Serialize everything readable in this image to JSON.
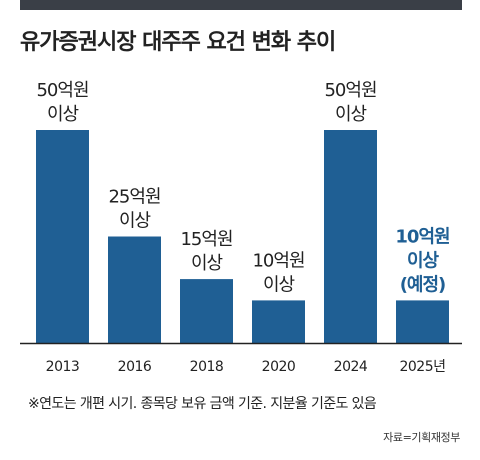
{
  "title": "유가증권시장 대주주 요건 변화 추이",
  "note": "※연도는 개편 시기. 종목당 보유 금액 기준. 지분율 기준도 있음",
  "source": "자료=기획재정부",
  "colors": {
    "bar": "#1f5f94",
    "highlight_text": "#1f5f94",
    "text": "#222222",
    "top_rule": "#3a3f47",
    "axis": "#222222"
  },
  "chart_data": {
    "type": "bar",
    "title": "유가증권시장 대주주 요건 변화 추이",
    "categories": [
      "2013",
      "2016",
      "2018",
      "2020",
      "2024",
      "2025년"
    ],
    "series": [
      {
        "values": [
          50,
          25,
          15,
          10,
          50,
          10
        ]
      }
    ],
    "value_labels": [
      {
        "amount": "50억원",
        "condition": "이상"
      },
      {
        "amount": "25억원",
        "condition": "이상"
      },
      {
        "amount": "15억원",
        "condition": "이상"
      },
      {
        "amount": "10억원",
        "condition": "이상"
      },
      {
        "amount": "50억원",
        "condition": "이상"
      },
      {
        "amount": "10억원",
        "condition": "이상",
        "extra": "(예정)",
        "highlight": true
      }
    ],
    "xlabel": "",
    "ylabel": "",
    "ylim": [
      0,
      50
    ],
    "grid": false,
    "legend": "none"
  }
}
